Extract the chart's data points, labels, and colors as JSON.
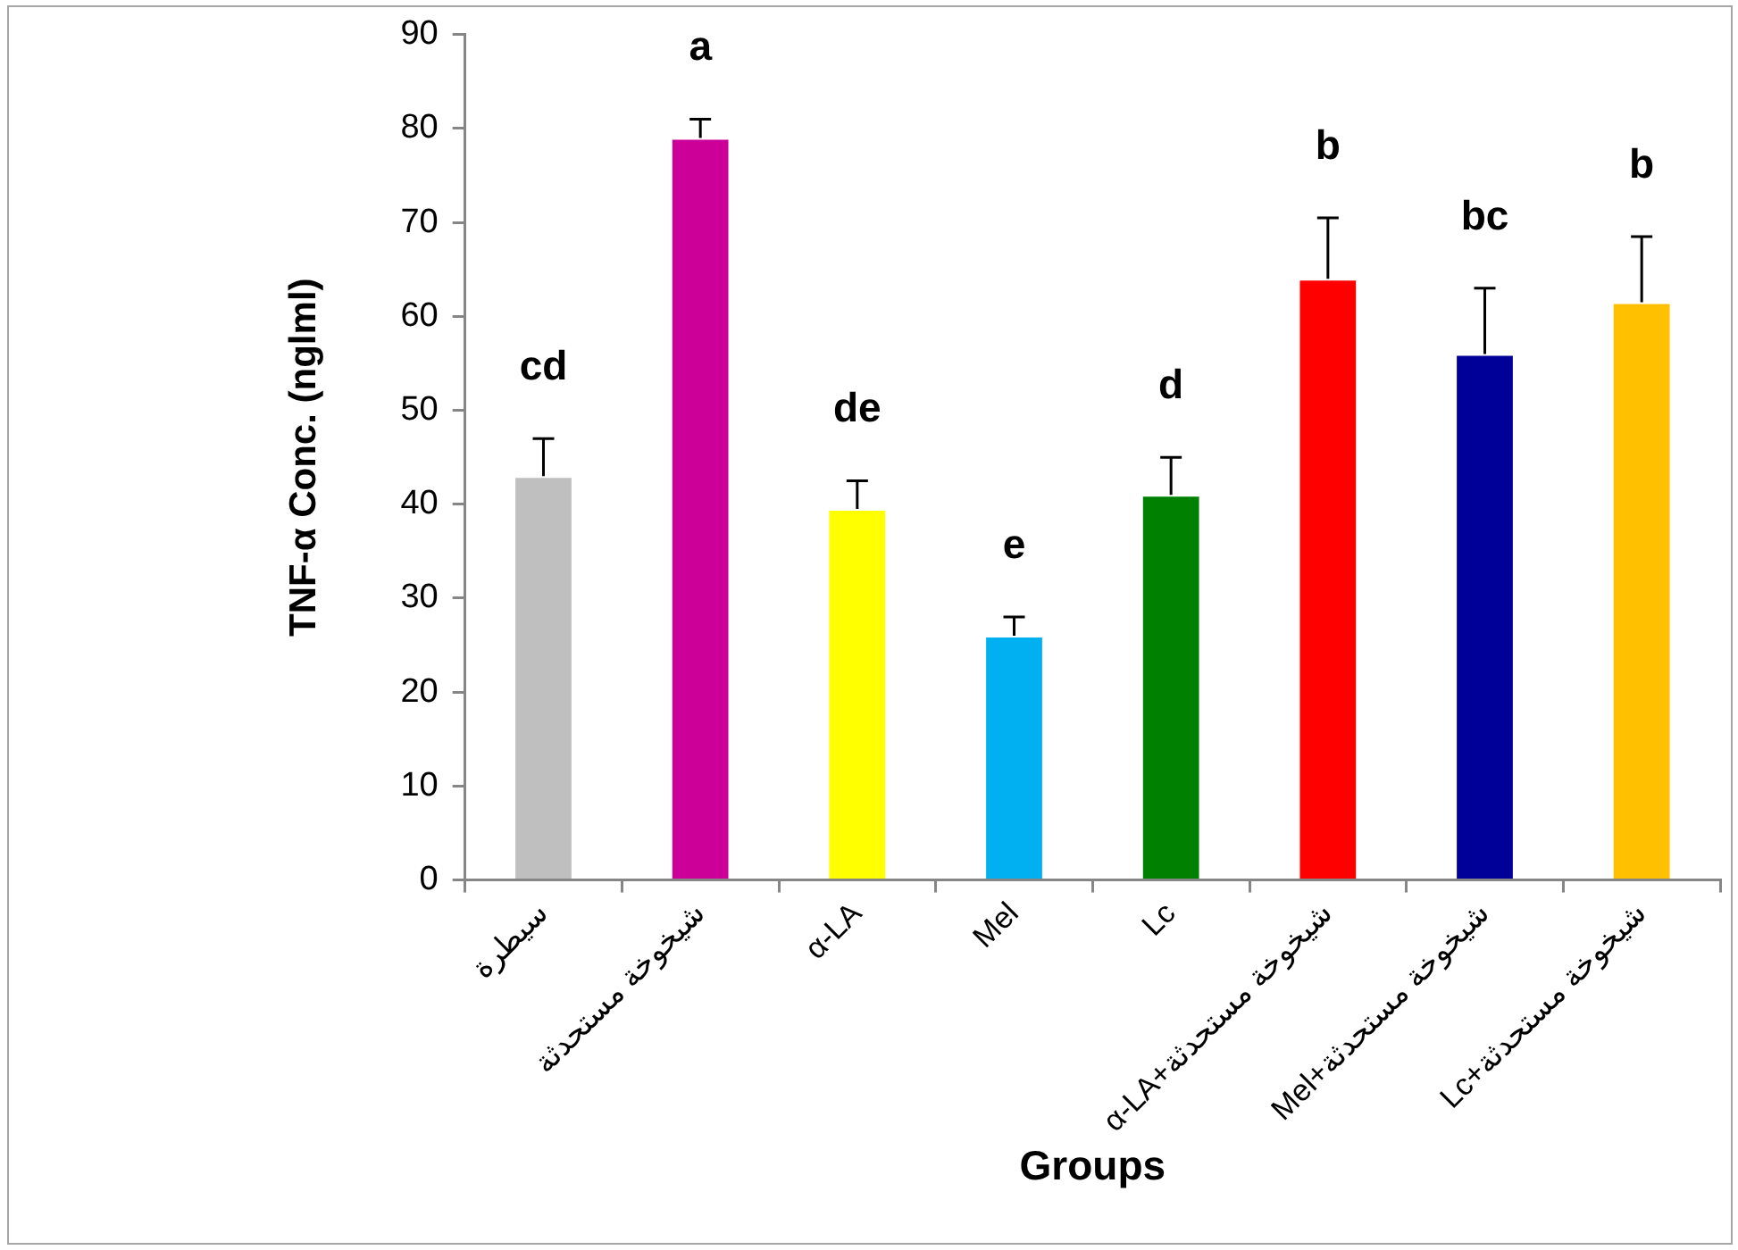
{
  "chart_data": {
    "type": "bar",
    "xlabel": "Groups",
    "ylabel": "TNF-α Conc. (nglml)",
    "categories": [
      "سيطرة",
      "شيخوخة مستحدثة",
      "α-LA",
      "Mel",
      "Lc",
      "α-LA+شيخوخة مستحدثة",
      "Mel+شيخوخة مستحدثة",
      "Lc+شيخوخة مستحدثة"
    ],
    "values": [
      43,
      79,
      39.5,
      26,
      41,
      64,
      56,
      61.5
    ],
    "colors": [
      "#bfbfbf",
      "#cc0099",
      "#ffff00",
      "#00b0f0",
      "#008000",
      "#ff0000",
      "#000099",
      "#ffc000"
    ],
    "errors": [
      [
        43,
        47
      ],
      [
        79,
        81
      ],
      [
        39.5,
        42.5
      ],
      [
        26,
        28
      ],
      [
        41,
        45
      ],
      [
        64,
        70.5
      ],
      [
        56,
        63
      ],
      [
        61.5,
        68.5
      ]
    ],
    "value_labels": [
      "cd",
      "a",
      "de",
      "e",
      "d",
      "b",
      "bc",
      "b"
    ],
    "ylim": [
      0,
      90
    ],
    "yticks": [
      0,
      10,
      20,
      30,
      40,
      50,
      60,
      70,
      80,
      90
    ],
    "grid": false,
    "legend": false
  }
}
